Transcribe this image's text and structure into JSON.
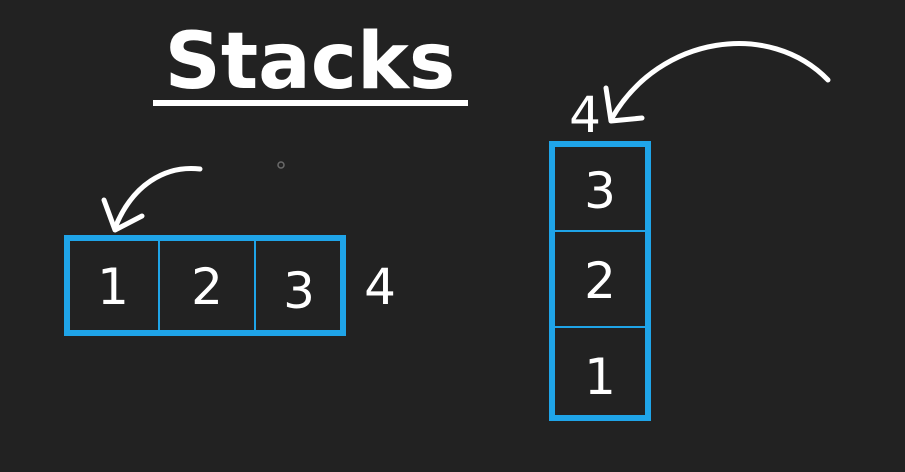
{
  "title": "Stacks",
  "colors": {
    "background": "#222222",
    "box": "#1fa4e8",
    "ink": "#ffffff"
  },
  "horizontal": {
    "cells": [
      "1",
      "2",
      "3"
    ],
    "incoming": "4"
  },
  "vertical": {
    "cells": [
      "3",
      "2",
      "1"
    ],
    "incoming": "4"
  }
}
